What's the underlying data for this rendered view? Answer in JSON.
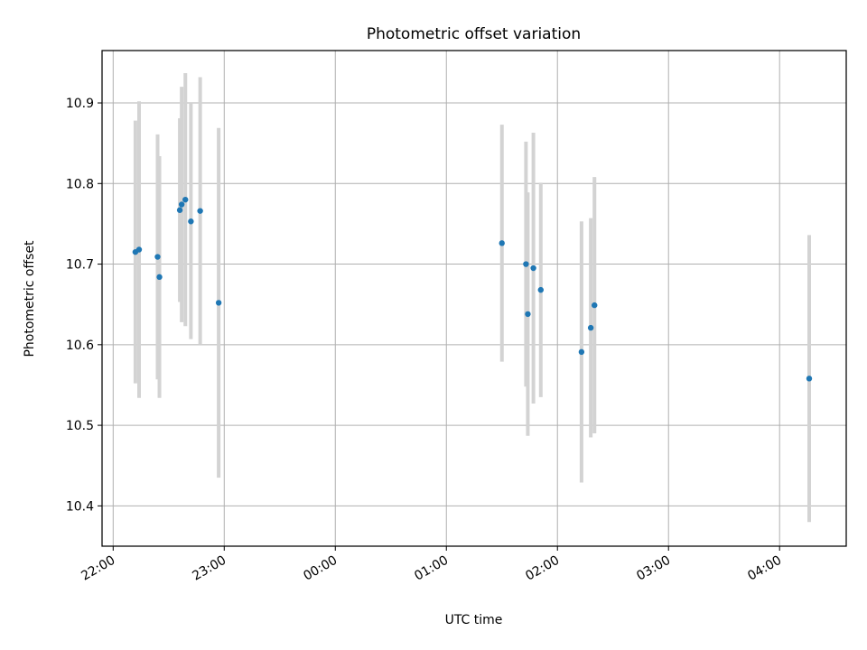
{
  "chart_data": {
    "type": "scatter",
    "title": "Photometric offset variation",
    "xlabel": "UTC time",
    "ylabel": "Photometric offset",
    "x_ticks": [
      "22:00",
      "23:00",
      "00:00",
      "01:00",
      "02:00",
      "03:00",
      "04:00"
    ],
    "x_tick_values_hours": [
      22,
      23,
      24,
      25,
      26,
      27,
      28
    ],
    "xlim_hours": [
      21.9,
      28.6
    ],
    "y_ticks": [
      "10.4",
      "10.5",
      "10.6",
      "10.7",
      "10.8",
      "10.9"
    ],
    "y_tick_values": [
      10.4,
      10.5,
      10.6,
      10.7,
      10.8,
      10.9
    ],
    "ylim": [
      10.35,
      10.965
    ],
    "grid": true,
    "legend": "none",
    "series": [
      {
        "marker_color": "#1f77b4",
        "errorbar_color": "#d3d3d3",
        "points": [
          {
            "time": "22:12",
            "y": 10.715,
            "err": 0.163
          },
          {
            "time": "22:14",
            "y": 10.718,
            "err": 0.184
          },
          {
            "time": "22:24",
            "y": 10.709,
            "err": 0.152
          },
          {
            "time": "22:25",
            "y": 10.684,
            "err": 0.15
          },
          {
            "time": "22:36",
            "y": 10.767,
            "err": 0.114
          },
          {
            "time": "22:37",
            "y": 10.774,
            "err": 0.146
          },
          {
            "time": "22:39",
            "y": 10.78,
            "err": 0.157
          },
          {
            "time": "22:42",
            "y": 10.753,
            "err": 0.146
          },
          {
            "time": "22:47",
            "y": 10.766,
            "err": 0.166
          },
          {
            "time": "22:57",
            "y": 10.652,
            "err": 0.217
          },
          {
            "time": "01:30",
            "y": 10.726,
            "err": 0.147
          },
          {
            "time": "01:43",
            "y": 10.7,
            "err": 0.152
          },
          {
            "time": "01:44",
            "y": 10.638,
            "err": 0.151
          },
          {
            "time": "01:47",
            "y": 10.695,
            "err": 0.168
          },
          {
            "time": "01:51",
            "y": 10.668,
            "err": 0.133
          },
          {
            "time": "02:13",
            "y": 10.591,
            "err": 0.162
          },
          {
            "time": "02:18",
            "y": 10.621,
            "err": 0.136
          },
          {
            "time": "02:20",
            "y": 10.649,
            "err": 0.159
          },
          {
            "time": "04:16",
            "y": 10.558,
            "err": 0.178
          }
        ]
      }
    ]
  }
}
